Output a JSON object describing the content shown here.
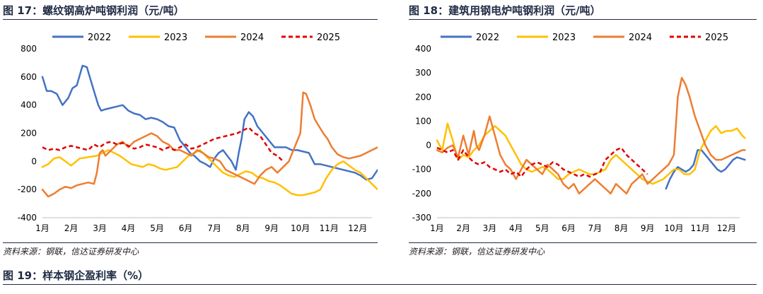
{
  "figure17": {
    "title": "图 17：螺纹钢高炉吨钢利润（元/吨）",
    "source": "资料来源：钢联，信达证券研发中心"
  },
  "figure18": {
    "title": "图 18：建筑用钢电炉吨钢利润（元/吨）",
    "source": "资料来源：钢联，信达证券研发中心"
  },
  "figure19": {
    "title": "图 19：样本钢企盈利率（%）"
  },
  "colors": {
    "2022": "#4472c4",
    "2023": "#ffc000",
    "2024": "#ed7d31",
    "2025": "#e00000"
  },
  "chart_data": [
    {
      "type": "line",
      "title": "螺纹钢高炉吨钢利润（元/吨）",
      "categories": [
        "1月",
        "2月",
        "3月",
        "4月",
        "5月",
        "6月",
        "7月",
        "8月",
        "9月",
        "10月",
        "11月",
        "12月"
      ],
      "ylim": [
        -400,
        800
      ],
      "yticks": [
        -400,
        -200,
        0,
        200,
        400,
        600,
        800
      ],
      "legend": "top",
      "series": [
        {
          "name": "2022",
          "x": [
            1.0,
            1.15,
            1.3,
            1.5,
            1.7,
            1.9,
            2.05,
            2.2,
            2.4,
            2.55,
            2.65,
            2.8,
            2.95,
            3.05,
            3.2,
            3.4,
            3.6,
            3.8,
            4.0,
            4.2,
            4.4,
            4.6,
            4.8,
            5.0,
            5.2,
            5.4,
            5.6,
            5.8,
            6.0,
            6.15,
            6.3,
            6.5,
            6.7,
            6.85,
            7.0,
            7.15,
            7.3,
            7.45,
            7.6,
            7.75,
            7.85,
            7.95,
            8.05,
            8.2,
            8.35,
            8.5,
            8.7,
            8.9,
            9.1,
            9.3,
            9.5,
            9.7,
            9.9,
            10.1,
            10.3,
            10.5,
            10.7,
            10.9,
            11.1,
            11.3,
            11.5,
            11.7,
            11.9,
            12.1,
            12.3,
            12.5,
            12.7
          ],
          "values": [
            600,
            500,
            500,
            480,
            400,
            450,
            520,
            540,
            680,
            670,
            600,
            500,
            400,
            360,
            370,
            380,
            390,
            400,
            360,
            340,
            330,
            300,
            310,
            300,
            280,
            250,
            240,
            150,
            100,
            60,
            40,
            0,
            -20,
            -40,
            20,
            60,
            80,
            40,
            0,
            -60,
            60,
            160,
            300,
            350,
            320,
            250,
            200,
            150,
            100,
            100,
            100,
            80,
            80,
            70,
            60,
            -20,
            -20,
            -30,
            -40,
            -50,
            -60,
            -70,
            -80,
            -100,
            -130,
            -120,
            -60
          ]
        },
        {
          "name": "2023",
          "x": [
            1.0,
            1.2,
            1.4,
            1.6,
            1.8,
            2.0,
            2.3,
            2.6,
            2.9,
            3.1,
            3.3,
            3.5,
            3.7,
            3.9,
            4.1,
            4.3,
            4.5,
            4.7,
            4.9,
            5.1,
            5.3,
            5.5,
            5.7,
            5.9,
            6.1,
            6.3,
            6.5,
            6.7,
            6.9,
            7.1,
            7.3,
            7.5,
            7.7,
            7.9,
            8.1,
            8.3,
            8.5,
            8.7,
            8.9,
            9.1,
            9.3,
            9.5,
            9.7,
            9.9,
            10.1,
            10.3,
            10.5,
            10.7,
            10.9,
            11.1,
            11.3,
            11.5,
            11.7,
            11.9,
            12.1,
            12.3,
            12.5,
            12.7
          ],
          "values": [
            -40,
            -20,
            20,
            30,
            0,
            -30,
            20,
            30,
            40,
            60,
            80,
            60,
            40,
            10,
            -20,
            -30,
            -40,
            -20,
            -30,
            -50,
            -60,
            -50,
            -40,
            0,
            40,
            60,
            80,
            40,
            0,
            -40,
            -80,
            -100,
            -110,
            -90,
            -70,
            -80,
            -110,
            -120,
            -140,
            -150,
            -170,
            -200,
            -230,
            -240,
            -240,
            -230,
            -220,
            -200,
            -120,
            -60,
            -20,
            0,
            -30,
            -60,
            -80,
            -120,
            -160,
            -200
          ]
        },
        {
          "name": "2024",
          "x": [
            1.0,
            1.2,
            1.4,
            1.6,
            1.8,
            2.0,
            2.2,
            2.4,
            2.6,
            2.8,
            2.9,
            3.0,
            3.1,
            3.2,
            3.4,
            3.6,
            3.8,
            4.0,
            4.2,
            4.4,
            4.6,
            4.8,
            5.0,
            5.2,
            5.4,
            5.6,
            5.8,
            6.0,
            6.2,
            6.4,
            6.6,
            6.8,
            7.0,
            7.2,
            7.4,
            7.6,
            7.8,
            8.0,
            8.2,
            8.4,
            8.6,
            8.8,
            9.0,
            9.2,
            9.4,
            9.6,
            9.8,
            10.0,
            10.1,
            10.2,
            10.35,
            10.5,
            10.65,
            10.8,
            10.95,
            11.1,
            11.3,
            11.5,
            11.7,
            11.9,
            12.1,
            12.3,
            12.5,
            12.7
          ],
          "values": [
            -200,
            -250,
            -230,
            -200,
            -180,
            -190,
            -170,
            -160,
            -150,
            -160,
            -80,
            60,
            80,
            40,
            80,
            120,
            140,
            100,
            140,
            160,
            180,
            200,
            180,
            140,
            120,
            80,
            80,
            60,
            40,
            80,
            60,
            30,
            20,
            0,
            -60,
            -80,
            -100,
            -120,
            -140,
            -160,
            -100,
            -60,
            -40,
            -80,
            -40,
            0,
            100,
            200,
            490,
            480,
            400,
            300,
            250,
            200,
            160,
            100,
            50,
            30,
            20,
            30,
            40,
            60,
            80,
            100
          ]
        },
        {
          "name": "2025",
          "x": [
            1.0,
            1.2,
            1.4,
            1.6,
            1.8,
            2.0,
            2.2,
            2.4,
            2.6,
            2.8,
            3.0,
            3.2,
            3.4,
            3.6,
            3.8,
            4.0,
            4.2,
            4.4,
            4.6,
            4.8,
            5.0,
            5.2,
            5.4,
            5.6,
            5.8,
            6.0,
            6.2,
            6.4,
            6.6,
            6.8,
            7.0,
            7.2,
            7.4,
            7.6,
            7.8,
            8.0,
            8.2,
            8.4,
            8.6,
            8.8,
            9.0,
            9.2,
            9.4
          ],
          "values": [
            100,
            80,
            90,
            80,
            100,
            110,
            100,
            90,
            80,
            120,
            100,
            130,
            140,
            120,
            130,
            110,
            90,
            100,
            120,
            110,
            100,
            80,
            100,
            80,
            100,
            120,
            90,
            100,
            120,
            140,
            160,
            170,
            180,
            190,
            200,
            220,
            240,
            200,
            180,
            120,
            60,
            40,
            0
          ]
        }
      ]
    },
    {
      "type": "line",
      "title": "建筑用钢电炉吨钢利润（元/吨）",
      "categories": [
        "1月",
        "2月",
        "3月",
        "4月",
        "5月",
        "6月",
        "7月",
        "8月",
        "9月",
        "10月",
        "11月",
        "12月"
      ],
      "ylim": [
        -300,
        400
      ],
      "yticks": [
        -300,
        -200,
        -100,
        0,
        100,
        200,
        300,
        400
      ],
      "legend": "top",
      "series": [
        {
          "name": "2022",
          "x": [
            9.7,
            9.85,
            10.0,
            10.15,
            10.3,
            10.45,
            10.6,
            10.75,
            10.9,
            11.05,
            11.2,
            11.35,
            11.5,
            11.65,
            11.8,
            11.95,
            12.1,
            12.25,
            12.4,
            12.55,
            12.7
          ],
          "values": [
            -180,
            -140,
            -110,
            -90,
            -100,
            -110,
            -100,
            -80,
            -20,
            -20,
            -40,
            -60,
            -80,
            -100,
            -110,
            -100,
            -80,
            -60,
            -50,
            -55,
            -60
          ]
        },
        {
          "name": "2023",
          "x": [
            1.0,
            1.2,
            1.4,
            1.6,
            1.8,
            2.0,
            2.2,
            2.4,
            2.6,
            2.8,
            3.0,
            3.2,
            3.4,
            3.6,
            3.8,
            4.0,
            4.2,
            4.4,
            4.6,
            4.8,
            5.0,
            5.2,
            5.4,
            5.6,
            5.8,
            6.0,
            6.2,
            6.4,
            6.6,
            6.8,
            7.0,
            7.2,
            7.4,
            7.6,
            7.8,
            8.0,
            8.2,
            8.4,
            8.6,
            8.8,
            9.0,
            9.2,
            9.4,
            9.6,
            9.8,
            10.0,
            10.2,
            10.4,
            10.6,
            10.8,
            11.0,
            11.2,
            11.4,
            11.6,
            11.8,
            12.0,
            12.2,
            12.4,
            12.6,
            12.7
          ],
          "values": [
            20,
            -20,
            90,
            20,
            -60,
            -40,
            -50,
            -20,
            0,
            40,
            60,
            80,
            60,
            40,
            0,
            -40,
            -80,
            -100,
            -110,
            -100,
            -90,
            -100,
            -120,
            -140,
            -140,
            -120,
            -110,
            -100,
            -110,
            -120,
            -120,
            -110,
            -100,
            -60,
            -40,
            -60,
            -80,
            -100,
            -120,
            -140,
            -150,
            -160,
            -150,
            -140,
            -120,
            -100,
            -100,
            -120,
            -120,
            -100,
            -20,
            20,
            60,
            80,
            50,
            60,
            60,
            70,
            40,
            30
          ]
        },
        {
          "name": "2024",
          "x": [
            1.0,
            1.2,
            1.4,
            1.6,
            1.8,
            2.0,
            2.2,
            2.4,
            2.5,
            2.6,
            2.8,
            3.0,
            3.2,
            3.4,
            3.6,
            3.8,
            4.0,
            4.2,
            4.4,
            4.6,
            4.8,
            5.0,
            5.2,
            5.4,
            5.6,
            5.8,
            6.0,
            6.2,
            6.4,
            6.6,
            6.8,
            7.0,
            7.2,
            7.4,
            7.6,
            7.8,
            8.0,
            8.2,
            8.4,
            8.6,
            8.8,
            9.0,
            9.2,
            9.4,
            9.6,
            9.8,
            10.0,
            10.15,
            10.3,
            10.45,
            10.6,
            10.8,
            11.0,
            11.2,
            11.4,
            11.6,
            11.8,
            12.0,
            12.2,
            12.4,
            12.6,
            12.7
          ],
          "values": [
            -20,
            -30,
            -10,
            0,
            -50,
            40,
            -40,
            60,
            0,
            -20,
            40,
            120,
            40,
            -40,
            -80,
            -100,
            -140,
            -100,
            -60,
            -80,
            -100,
            -120,
            -80,
            -100,
            -120,
            -160,
            -180,
            -160,
            -200,
            -180,
            -160,
            -140,
            -160,
            -180,
            -200,
            -160,
            -180,
            -200,
            -160,
            -140,
            -120,
            -160,
            -140,
            -120,
            -100,
            -80,
            -40,
            200,
            280,
            250,
            200,
            120,
            60,
            0,
            -40,
            -60,
            -60,
            -50,
            -40,
            -30,
            -20,
            -20
          ]
        },
        {
          "name": "2025",
          "x": [
            1.0,
            1.2,
            1.4,
            1.6,
            1.8,
            2.0,
            2.2,
            2.4,
            2.6,
            2.8,
            3.0,
            3.2,
            3.4,
            3.6,
            3.8,
            4.0,
            4.2,
            4.4,
            4.6,
            4.8,
            5.0,
            5.2,
            5.4,
            5.6,
            5.8,
            6.0,
            6.2,
            6.4,
            6.6,
            6.8,
            7.0,
            7.2,
            7.4,
            7.6,
            7.8,
            8.0,
            8.2,
            8.4,
            8.6,
            8.8,
            9.0
          ],
          "values": [
            -10,
            -20,
            -30,
            -20,
            -60,
            -20,
            -50,
            -70,
            -80,
            -70,
            -90,
            -100,
            -110,
            -100,
            -120,
            -110,
            -130,
            -100,
            -80,
            -70,
            -80,
            -90,
            -70,
            -80,
            -100,
            -110,
            -120,
            -130,
            -120,
            -130,
            -120,
            -110,
            -60,
            -40,
            -20,
            -10,
            -40,
            -60,
            -80,
            -100,
            -120
          ]
        }
      ]
    }
  ]
}
